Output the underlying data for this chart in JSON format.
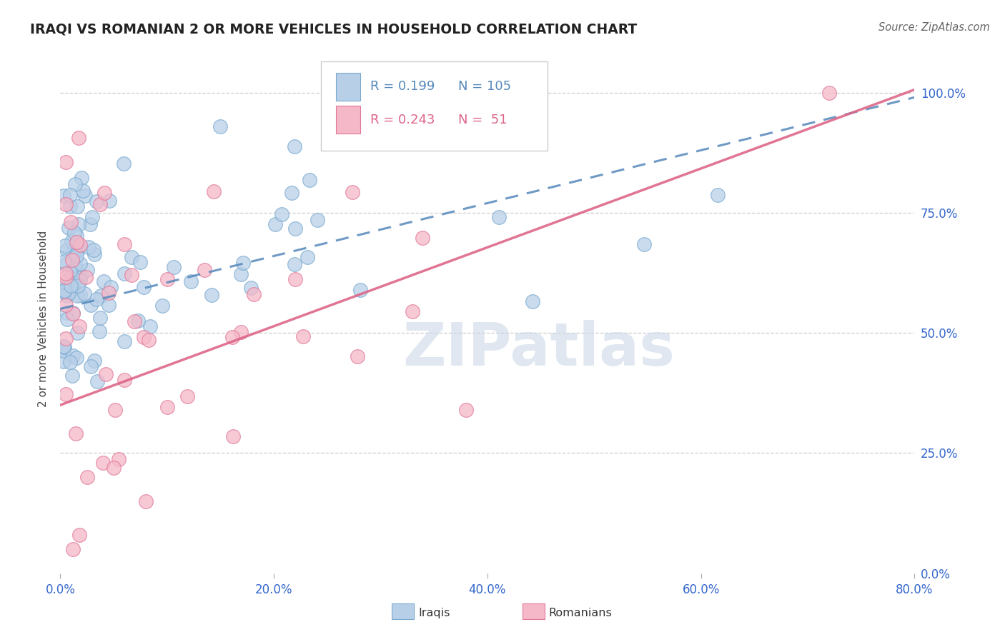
{
  "title": "IRAQI VS ROMANIAN 2 OR MORE VEHICLES IN HOUSEHOLD CORRELATION CHART",
  "source": "Source: ZipAtlas.com",
  "ylabel": "2 or more Vehicles in Household",
  "R_iraqi": 0.199,
  "N_iraqi": 105,
  "R_romanian": 0.243,
  "N_romanian": 51,
  "iraqi_fill": "#b8cfe8",
  "iraqi_edge": "#7aaad0",
  "romanian_fill": "#f5b8c8",
  "romanian_edge": "#e07898",
  "iraqi_line_color": "#5588bb",
  "romanian_line_color": "#dd6688",
  "watermark_color": "#ccd8e8",
  "legend_iraqi": "Iraqis",
  "legend_romanian": "Romanians",
  "title_color": "#222222",
  "source_color": "#666666",
  "tick_color": "#3366cc",
  "ylabel_color": "#444444",
  "grid_color": "#cccccc",
  "iraqi_line_intercept": 55.0,
  "iraqi_line_slope": 0.55,
  "romanian_line_intercept": 35.0,
  "romanian_line_slope": 0.82
}
